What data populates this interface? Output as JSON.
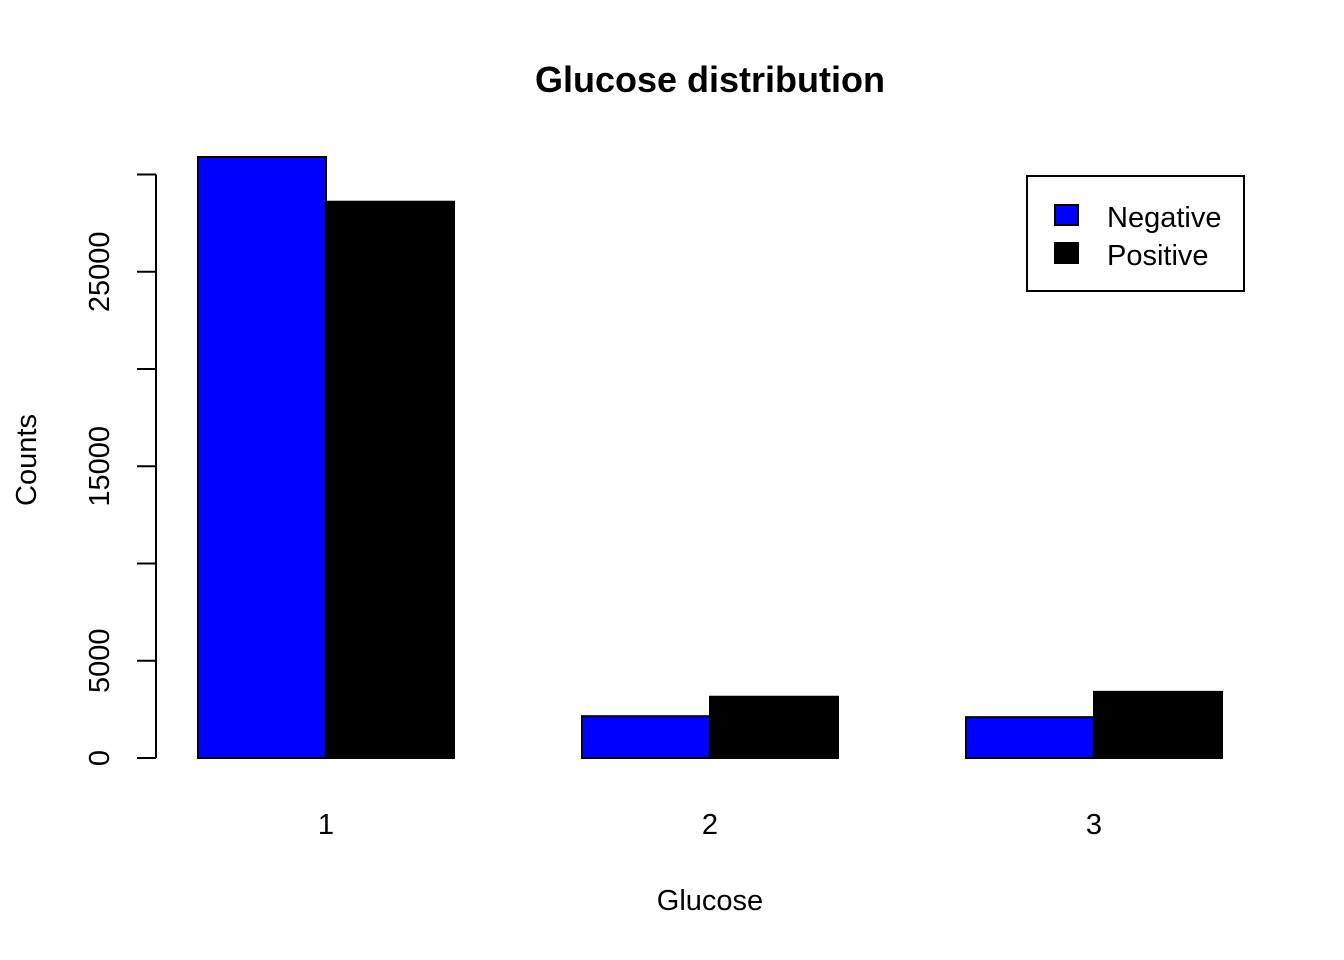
{
  "chart_data": {
    "type": "bar",
    "title": "Glucose distribution",
    "xlabel": "Glucose",
    "ylabel": "Counts",
    "categories": [
      "1",
      "2",
      "3"
    ],
    "series": [
      {
        "name": "Negative",
        "color": "#0000ff",
        "values": [
          30900,
          2150,
          2100
        ]
      },
      {
        "name": "Positive",
        "color": "#000000",
        "values": [
          28600,
          3150,
          3400
        ]
      }
    ],
    "ylim": [
      0,
      30900
    ],
    "yticks": [
      0,
      5000,
      10000,
      15000,
      20000,
      25000,
      30000
    ],
    "ytick_labels": [
      "0",
      "5000",
      "",
      "15000",
      "",
      "25000",
      ""
    ],
    "grid": false,
    "legend_position": "top-right"
  }
}
